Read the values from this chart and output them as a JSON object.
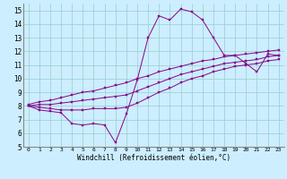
{
  "xlabel": "Windchill (Refroidissement éolien,°C)",
  "xlim": [
    -0.5,
    23.5
  ],
  "ylim": [
    5,
    15.5
  ],
  "xticks": [
    0,
    1,
    2,
    3,
    4,
    5,
    6,
    7,
    8,
    9,
    10,
    11,
    12,
    13,
    14,
    15,
    16,
    17,
    18,
    19,
    20,
    21,
    22,
    23
  ],
  "yticks": [
    5,
    6,
    7,
    8,
    9,
    10,
    11,
    12,
    13,
    14,
    15
  ],
  "bg_color": "#cceeff",
  "line_color": "#880088",
  "grid_color": "#99cccc",
  "series": [
    [
      8.0,
      7.7,
      7.6,
      7.5,
      6.7,
      6.6,
      6.7,
      6.6,
      5.3,
      7.4,
      9.9,
      13.0,
      14.6,
      14.3,
      15.1,
      14.9,
      14.3,
      13.0,
      11.7,
      11.7,
      11.1,
      10.5,
      11.8,
      11.7
    ],
    [
      8.0,
      7.9,
      7.8,
      7.7,
      7.7,
      7.7,
      7.8,
      7.8,
      7.8,
      7.9,
      8.2,
      8.6,
      9.0,
      9.3,
      9.7,
      10.0,
      10.2,
      10.5,
      10.7,
      10.9,
      11.0,
      11.1,
      11.3,
      11.4
    ],
    [
      8.0,
      8.1,
      8.1,
      8.2,
      8.3,
      8.4,
      8.5,
      8.6,
      8.7,
      8.8,
      9.1,
      9.4,
      9.7,
      10.0,
      10.3,
      10.5,
      10.7,
      10.9,
      11.1,
      11.2,
      11.3,
      11.4,
      11.6,
      11.7
    ],
    [
      8.1,
      8.3,
      8.4,
      8.6,
      8.8,
      9.0,
      9.1,
      9.3,
      9.5,
      9.7,
      10.0,
      10.2,
      10.5,
      10.7,
      10.9,
      11.1,
      11.3,
      11.4,
      11.6,
      11.7,
      11.8,
      11.9,
      12.0,
      12.1
    ]
  ],
  "marker_size": 2.0,
  "line_width": 0.7
}
